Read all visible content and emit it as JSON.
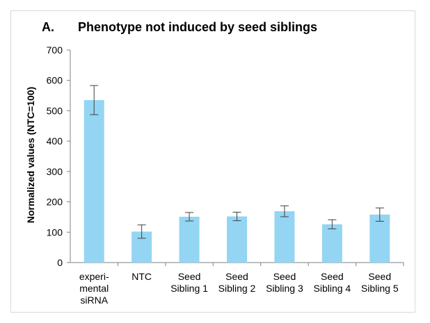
{
  "panel_label": "A.",
  "chart_data": {
    "type": "bar",
    "title": "Phenotype not induced by seed siblings",
    "xlabel": "",
    "ylabel": "Normalized values (NTC=100)",
    "ylim": [
      0,
      700
    ],
    "yticks": [
      0,
      100,
      200,
      300,
      400,
      500,
      600,
      700
    ],
    "grid": false,
    "legend": "none",
    "bar_color": "#93d5f3",
    "error_color": "#404040",
    "categories": [
      [
        "experi-",
        "mental",
        "siRNA"
      ],
      [
        "NTC"
      ],
      [
        "Seed",
        "Sibling 1"
      ],
      [
        "Seed",
        "Sibling 2"
      ],
      [
        "Seed",
        "Sibling 3"
      ],
      [
        "Seed",
        "Sibling 4"
      ],
      [
        "Seed",
        "Sibling 5"
      ]
    ],
    "values": [
      535,
      102,
      151,
      152,
      169,
      126,
      158
    ],
    "errors": [
      48,
      22,
      14,
      14,
      18,
      15,
      22
    ]
  }
}
